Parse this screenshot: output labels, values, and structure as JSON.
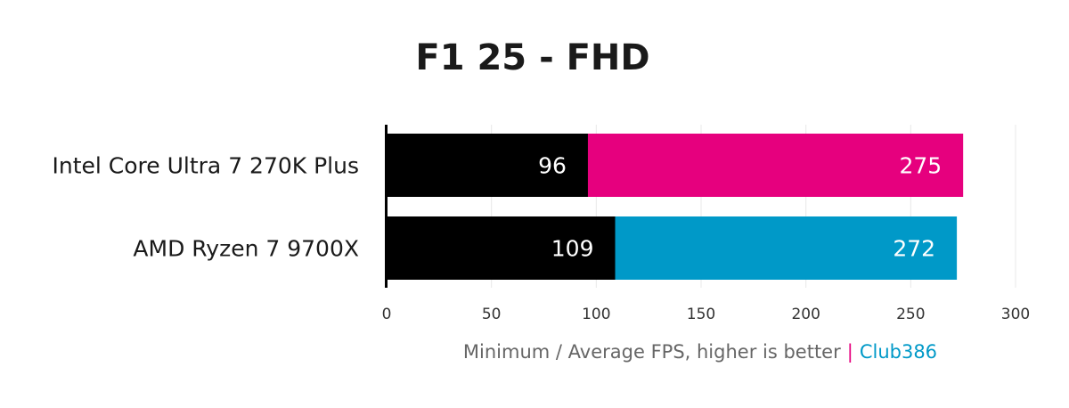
{
  "chart_data": {
    "type": "bar",
    "orientation": "horizontal",
    "stacked": "overlay",
    "title": "F1 25 - FHD",
    "categories": [
      "Intel Core Ultra 7 270K Plus",
      "AMD Ryzen 7 9700X"
    ],
    "series": [
      {
        "name": "Minimum",
        "values": [
          96,
          109
        ],
        "color": "#000000"
      },
      {
        "name": "Average",
        "values": [
          275,
          272
        ],
        "colors": [
          "#e6007e",
          "#0099c8"
        ]
      }
    ],
    "xlim": [
      0,
      300
    ],
    "xticks": [
      0,
      50,
      100,
      150,
      200,
      250,
      300
    ],
    "xlabel": "Minimum / Average FPS, higher is better",
    "xlabel_separator": "|",
    "brand": "Club386",
    "grid": true
  }
}
